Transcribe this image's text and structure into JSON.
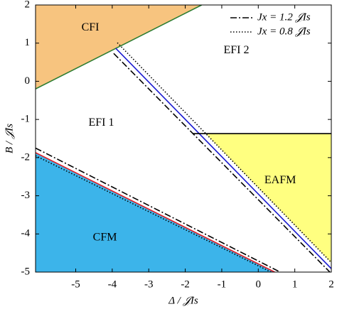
{
  "chart_data": {
    "type": "phase_diagram",
    "x_label": "Δ / 𝒥Is",
    "y_label": "B / 𝒥Is",
    "xlim": [
      -6.1,
      2
    ],
    "ylim": [
      -5,
      2
    ],
    "xticks": [
      -5,
      -4,
      -3,
      -2,
      -1,
      0,
      1,
      2
    ],
    "yticks": [
      -5,
      -4,
      -3,
      -2,
      -1,
      0,
      1,
      2
    ],
    "regions": [
      {
        "name": "CFI",
        "color": "#f7c47f",
        "x": [
          -6.1,
          -1.55,
          -6.1
        ],
        "y": [
          -0.2,
          2,
          2
        ]
      },
      {
        "name": "EFI 2"
      },
      {
        "name": "EFI 1"
      },
      {
        "name": "EAFM",
        "color": "#ffff80",
        "x": [
          -1.44,
          2,
          2
        ],
        "y": [
          -1.37,
          -1.37,
          -4.75
        ]
      },
      {
        "name": "CFM",
        "color": "#3cb4ea",
        "x": [
          -6.1,
          0.45,
          -6.1
        ],
        "y": [
          -1.87,
          -5,
          -5
        ]
      }
    ],
    "boundaries": [
      {
        "color": "#2e7d32",
        "x": [
          -6.1,
          -1.55
        ],
        "y": [
          -0.2,
          2
        ]
      },
      {
        "color": "#e0202a",
        "x": [
          -6.1,
          0.45
        ],
        "y": [
          -1.87,
          -5
        ]
      },
      {
        "color": "#1a1ad0",
        "x": [
          -3.9,
          2
        ],
        "y": [
          0.86,
          -4.91
        ]
      },
      {
        "color": "#000000",
        "x": [
          -1.8,
          2
        ],
        "y": [
          -1.37,
          -1.37
        ]
      }
    ],
    "series": [
      {
        "name": "Jx = 1.2 𝒥Is",
        "color": "#000000",
        "style": "dashdot",
        "x": [
          -6.1,
          0.6,
          null,
          -3.96,
          1.96
        ],
        "y": [
          -1.75,
          -5,
          null,
          0.73,
          -5
        ]
      },
      {
        "name": "Jx = 0.8 𝒥Is",
        "color": "#000000",
        "style": "dotted",
        "x": [
          -6.1,
          0.35,
          null,
          -3.86,
          2
        ],
        "y": [
          -1.95,
          -5,
          null,
          1.01,
          -4.75
        ]
      }
    ],
    "legend": "upper right"
  }
}
